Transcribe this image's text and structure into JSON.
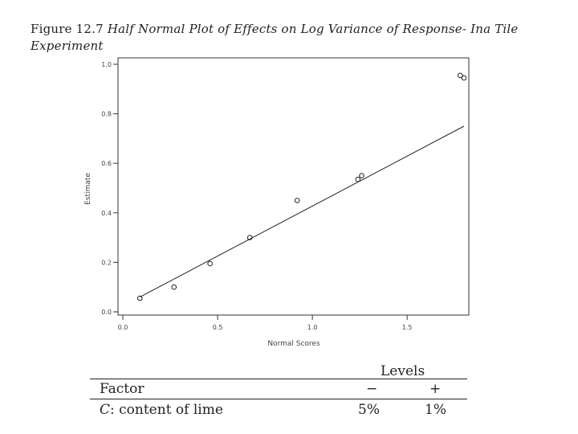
{
  "caption": {
    "lead": "Figure 12.7",
    "title": "Half Normal Plot of Effects on Log Variance of Response- Ina Tile Experiment"
  },
  "chart_data": {
    "type": "scatter",
    "xlabel": "Normal Scores",
    "ylabel": "Estimate",
    "xlim": [
      0.0,
      1.8
    ],
    "ylim": [
      0.0,
      1.0
    ],
    "x_ticks": [
      0.0,
      0.5,
      1.0,
      1.5
    ],
    "y_ticks": [
      0.0,
      0.2,
      0.4,
      0.6,
      0.8,
      1.0
    ],
    "x_tick_labels": [
      "0.0",
      "0.5",
      "1.0",
      "1.5"
    ],
    "y_tick_labels": [
      "0.0",
      "0.2",
      "0.4",
      "0.6",
      "0.8",
      "1.0"
    ],
    "points": [
      {
        "x": 0.09,
        "y": 0.055
      },
      {
        "x": 0.27,
        "y": 0.1
      },
      {
        "x": 0.46,
        "y": 0.195
      },
      {
        "x": 0.67,
        "y": 0.3
      },
      {
        "x": 0.92,
        "y": 0.45
      },
      {
        "x": 1.24,
        "y": 0.535
      },
      {
        "x": 1.26,
        "y": 0.55
      },
      {
        "x": 1.78,
        "y": 0.955
      },
      {
        "x": 1.8,
        "y": 0.945
      }
    ],
    "fit_line": [
      {
        "x": 0.09,
        "y": 0.06
      },
      {
        "x": 1.8,
        "y": 0.75
      }
    ],
    "grid": false,
    "legend": "none"
  },
  "table": {
    "col_group": "Levels",
    "header": {
      "factor": "Factor",
      "minus": "−",
      "plus": "+"
    },
    "rows": [
      {
        "sym": "C",
        "label": ": content of lime",
        "minus": "5%",
        "plus": "1%"
      }
    ]
  }
}
